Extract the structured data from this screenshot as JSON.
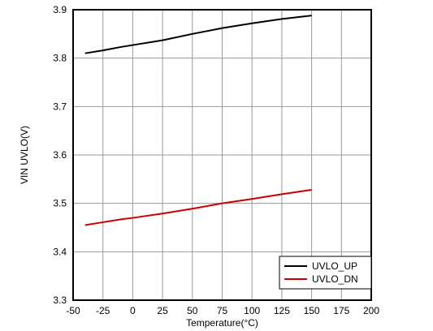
{
  "chart_data": {
    "type": "line",
    "xlabel": "Temperature(°C)",
    "ylabel": "VIN UVLO(V)",
    "xlim": [
      -50,
      200
    ],
    "ylim": [
      3.3,
      3.9
    ],
    "xticks": [
      "-50",
      "-25",
      "0",
      "25",
      "50",
      "75",
      "100",
      "125",
      "150",
      "175",
      "200"
    ],
    "yticks": [
      "3.3",
      "3.4",
      "3.5",
      "3.6",
      "3.7",
      "3.8",
      "3.9"
    ],
    "grid": true,
    "legend_position": "bottom-right",
    "series": [
      {
        "name": "UVLO_UP",
        "color": "#000000",
        "x": [
          -40,
          -25,
          -10,
          0,
          25,
          50,
          75,
          100,
          125,
          150
        ],
        "y": [
          3.81,
          3.816,
          3.823,
          3.827,
          3.837,
          3.85,
          3.862,
          3.872,
          3.881,
          3.888
        ]
      },
      {
        "name": "UVLO_DN",
        "color": "#cc0000",
        "x": [
          -40,
          -25,
          -10,
          0,
          25,
          50,
          75,
          100,
          125,
          150
        ],
        "y": [
          3.455,
          3.461,
          3.467,
          3.47,
          3.479,
          3.489,
          3.5,
          3.509,
          3.519,
          3.528
        ]
      }
    ]
  }
}
